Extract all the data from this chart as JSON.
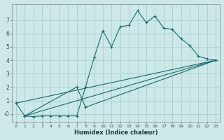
{
  "xlabel": "Humidex (Indice chaleur)",
  "background_color": "#cce8e8",
  "grid_color": "#aacfcf",
  "line_color": "#1a6b6b",
  "xlim": [
    -0.5,
    23.5
  ],
  "ylim": [
    -0.6,
    8.2
  ],
  "yticks": [
    0,
    1,
    2,
    3,
    4,
    5,
    6,
    7
  ],
  "ytick_labels": [
    "-0",
    "1",
    "2",
    "3",
    "4",
    "5",
    "6",
    "7"
  ],
  "xticks": [
    0,
    1,
    2,
    3,
    4,
    5,
    6,
    7,
    8,
    9,
    10,
    11,
    12,
    13,
    14,
    15,
    16,
    17,
    18,
    19,
    20,
    21,
    22,
    23
  ],
  "curve1_x": [
    0,
    1,
    2,
    3,
    4,
    5,
    6,
    7,
    8,
    9,
    10,
    11,
    12,
    13,
    14,
    15,
    16,
    17,
    18,
    19,
    20,
    21,
    22,
    23
  ],
  "curve1_y": [
    0.8,
    -0.15,
    -0.2,
    -0.15,
    -0.15,
    -0.15,
    -0.15,
    -0.15,
    2.0,
    4.2,
    6.2,
    5.0,
    6.5,
    6.6,
    7.7,
    6.8,
    7.3,
    6.4,
    6.3,
    5.6,
    5.1,
    4.3,
    4.1,
    4.0
  ],
  "curve2_x": [
    0,
    23
  ],
  "curve2_y": [
    0.8,
    4.0
  ],
  "curve3_x": [
    1,
    23
  ],
  "curve3_y": [
    -0.15,
    4.0
  ],
  "curve4_x": [
    1,
    7,
    8,
    23
  ],
  "curve4_y": [
    -0.15,
    2.0,
    0.5,
    4.0
  ]
}
